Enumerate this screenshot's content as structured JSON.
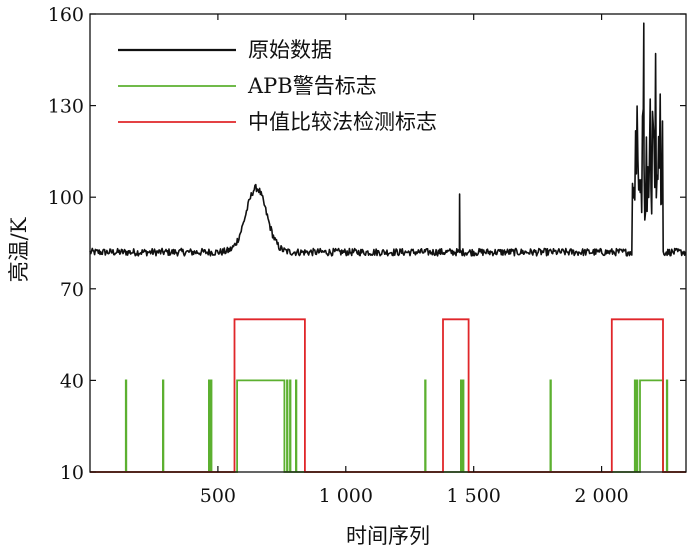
{
  "chart_data": {
    "type": "line",
    "xlabel": "时间序列",
    "ylabel": "亮温/K",
    "xlim": [
      0,
      2330
    ],
    "ylim": [
      10,
      160
    ],
    "x_ticks": [
      500,
      1000,
      1500,
      2000
    ],
    "x_tick_labels": [
      "500",
      "1 000",
      "1 500",
      "2 000"
    ],
    "y_ticks": [
      10,
      40,
      70,
      100,
      130,
      160
    ],
    "y_tick_labels": [
      "10",
      "40",
      "70",
      "100",
      "130",
      "160"
    ],
    "grid": false,
    "legend_position": "top-left",
    "series": [
      {
        "name": "原始数据",
        "color": "#111111",
        "kind": "signal",
        "baseline": 82,
        "noise": 1.2,
        "bumps": [
          {
            "center": 650,
            "width": 40,
            "height": 21
          }
        ],
        "spikes": [
          {
            "x": 1445,
            "y": 101
          }
        ],
        "burst": {
          "start": 2120,
          "end": 2240,
          "low": 92,
          "high": 157
        }
      },
      {
        "name": "APB警告标志",
        "color": "#5cb030",
        "kind": "flags",
        "low": 10,
        "high": 40,
        "pulses": [
          [
            140,
            142
          ],
          [
            285,
            287
          ],
          [
            465,
            467
          ],
          [
            473,
            475
          ],
          [
            575,
            760
          ],
          [
            770,
            772
          ],
          [
            782,
            784
          ],
          [
            805,
            807
          ],
          [
            1310,
            1312
          ],
          [
            1450,
            1452
          ],
          [
            1458,
            1460
          ],
          [
            1800,
            1802
          ],
          [
            2130,
            2132
          ],
          [
            2138,
            2140
          ],
          [
            2150,
            2240
          ],
          [
            2255,
            2257
          ]
        ]
      },
      {
        "name": "中值比较法检测标志",
        "color": "#e0262a",
        "kind": "flags",
        "low": 10,
        "high": 60,
        "pulses": [
          [
            565,
            840
          ],
          [
            1380,
            1480
          ],
          [
            2040,
            2240
          ]
        ]
      }
    ]
  }
}
